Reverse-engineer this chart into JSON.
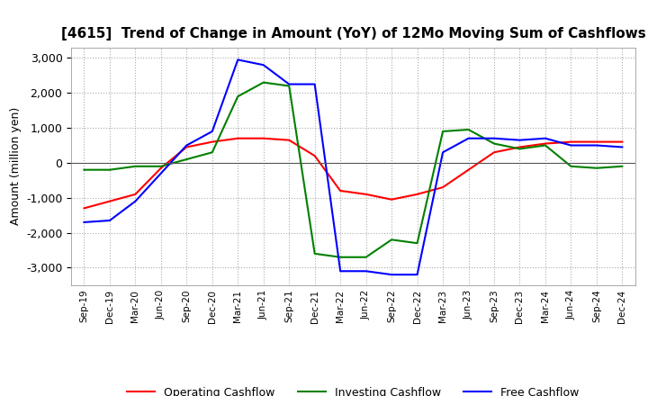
{
  "title": "[4615]  Trend of Change in Amount (YoY) of 12Mo Moving Sum of Cashflows",
  "ylabel": "Amount (million yen)",
  "ylim": [
    -3500,
    3300
  ],
  "yticks": [
    -3000,
    -2000,
    -1000,
    0,
    1000,
    2000,
    3000
  ],
  "x_labels": [
    "Sep-19",
    "Dec-19",
    "Mar-20",
    "Jun-20",
    "Sep-20",
    "Dec-20",
    "Mar-21",
    "Jun-21",
    "Sep-21",
    "Dec-21",
    "Mar-22",
    "Jun-22",
    "Sep-22",
    "Dec-22",
    "Mar-23",
    "Jun-23",
    "Sep-23",
    "Dec-23",
    "Mar-24",
    "Jun-24",
    "Sep-24",
    "Dec-24"
  ],
  "operating": [
    -1300,
    -1100,
    -900,
    -150,
    450,
    600,
    700,
    700,
    650,
    200,
    -800,
    -900,
    -1050,
    -900,
    -700,
    -200,
    300,
    450,
    550,
    600,
    600,
    600
  ],
  "investing": [
    -200,
    -200,
    -100,
    -100,
    100,
    300,
    1900,
    2300,
    2200,
    -2600,
    -2700,
    -2700,
    -2200,
    -2300,
    900,
    950,
    550,
    400,
    500,
    -100,
    -150,
    -100
  ],
  "free": [
    -1700,
    -1650,
    -1100,
    -300,
    500,
    900,
    2950,
    2800,
    2250,
    2250,
    -3100,
    -3100,
    -3200,
    -3200,
    300,
    700,
    700,
    650,
    700,
    500,
    500,
    450
  ],
  "operating_color": "#ff0000",
  "investing_color": "#008000",
  "free_color": "#0000ff",
  "grid_color": "#aaaaaa",
  "background_color": "#ffffff",
  "title_fontsize": 11,
  "axis_fontsize": 9,
  "legend_fontsize": 9
}
